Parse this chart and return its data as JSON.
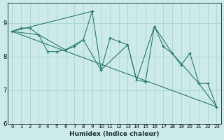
{
  "xlabel": "Humidex (Indice chaleur)",
  "ylabel": "",
  "xlim": [
    -0.5,
    23.5
  ],
  "ylim": [
    6.0,
    9.6
  ],
  "yticks": [
    6,
    7,
    8,
    9
  ],
  "xticks": [
    0,
    1,
    2,
    3,
    4,
    5,
    6,
    7,
    8,
    9,
    10,
    11,
    12,
    13,
    14,
    15,
    16,
    17,
    18,
    19,
    20,
    21,
    22,
    23
  ],
  "bg_color": "#cceaea",
  "grid_color": "#aad4d4",
  "line_color": "#2a7a6a",
  "line1_x": [
    0,
    1,
    2,
    3,
    4,
    5,
    6,
    7,
    8,
    9,
    10,
    11,
    12,
    13,
    14,
    15,
    16,
    17,
    18,
    19,
    20,
    21,
    22,
    23
  ],
  "line1_y": [
    8.75,
    8.85,
    8.85,
    8.65,
    8.15,
    8.15,
    8.2,
    8.3,
    8.5,
    9.35,
    7.6,
    8.55,
    8.45,
    8.35,
    7.3,
    7.25,
    8.9,
    8.3,
    8.1,
    7.75,
    8.1,
    7.2,
    7.2,
    6.5
  ],
  "line2_x": [
    0,
    23
  ],
  "line2_y": [
    8.75,
    6.5
  ],
  "line3_x": [
    0,
    9
  ],
  "line3_y": [
    8.75,
    9.35
  ],
  "line4_x": [
    0,
    3,
    6,
    8,
    10,
    13,
    14,
    16,
    18,
    21,
    23
  ],
  "line4_y": [
    8.75,
    8.65,
    8.2,
    8.5,
    7.6,
    8.35,
    7.3,
    8.9,
    8.1,
    7.2,
    6.5
  ]
}
